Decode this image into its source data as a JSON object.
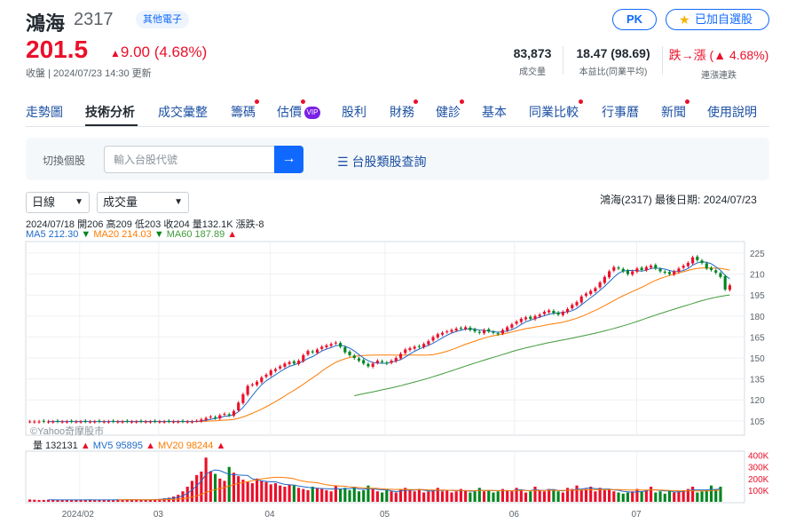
{
  "stock": {
    "name": "鴻海",
    "code": "2317",
    "category": "其他電子",
    "price": "201.5",
    "change": "9.00 (4.68%)",
    "updated": "收盤 | 2024/07/23 14:30 更新"
  },
  "actions": {
    "pk": "PK",
    "watchlist": "已加自選股"
  },
  "stats": [
    {
      "value": "83,873",
      "label": "成交量"
    },
    {
      "value": "18.47 (98.69)",
      "label": "本益比(同業平均)"
    },
    {
      "value": "跌→漲 (▲ 4.68%)",
      "label": "連漲連跌"
    }
  ],
  "tabs": [
    {
      "label": "走勢圖",
      "dot": false
    },
    {
      "label": "技術分析",
      "dot": false
    },
    {
      "label": "成交彙整",
      "dot": false
    },
    {
      "label": "籌碼",
      "dot": true
    },
    {
      "label": "估價",
      "dot": true
    },
    {
      "label": "股利",
      "dot": false
    },
    {
      "label": "財務",
      "dot": true
    },
    {
      "label": "健診",
      "dot": true
    },
    {
      "label": "基本",
      "dot": false
    },
    {
      "label": "同業比較",
      "dot": true
    },
    {
      "label": "行事曆",
      "dot": false
    },
    {
      "label": "新聞",
      "dot": true
    },
    {
      "label": "使用說明",
      "dot": false
    }
  ],
  "vip_badge": "VIP",
  "switcher": {
    "label": "切換個股",
    "placeholder": "輸入台股代號",
    "category_link": "台股類股查詢"
  },
  "controls": {
    "period": "日線",
    "indicator": "成交量",
    "chart_meta": "鴻海(2317)  最後日期: 2024/07/23"
  },
  "legend": {
    "ohlc": "2024/07/18 開206 高209 低203 收204 量132.1K 漲跌-8",
    "ma5": "MA5 212.30",
    "ma20": "MA20 214.03",
    "ma60": "MA60 187.89",
    "vol": "量 132131",
    "mv5": "MV5 95895",
    "mv20": "MV20 98244"
  },
  "colors": {
    "up": "#eb0f29",
    "down": "#00851f",
    "ma5": "#1d6ac8",
    "ma20": "#ff7b00",
    "ma60": "#3f9a3a",
    "accent": "#0f69ff"
  },
  "watermark": "©Yahoo奇摩股市",
  "chart_data": {
    "type": "candlestick",
    "y_ticks": [
      105,
      120,
      135,
      150,
      165,
      180,
      195,
      210,
      225
    ],
    "ylim": [
      96,
      232
    ],
    "vol_ticks": [
      "400K",
      "300K",
      "200K",
      "100K"
    ],
    "x_labels": [
      "2024/02",
      "03",
      "04",
      "05",
      "06",
      "07"
    ],
    "closes": [
      104.5,
      104.5,
      104.5,
      104.5,
      104.5,
      104.5,
      104.5,
      104.5,
      104.5,
      104.5,
      104.5,
      104.5,
      104.5,
      104.5,
      104.5,
      104.5,
      104.5,
      104.5,
      104.5,
      104.5,
      104.5,
      104.5,
      104.5,
      104.5,
      104.5,
      104.5,
      104.5,
      104.5,
      104.5,
      104.5,
      104.5,
      104.5,
      104.5,
      104.5,
      104.5,
      104.5,
      105,
      106,
      107,
      108,
      107,
      109,
      110,
      109,
      112,
      118,
      124,
      130,
      131,
      133,
      136,
      138,
      141,
      142,
      144,
      146,
      147,
      146,
      148,
      152,
      155,
      154,
      156,
      158,
      159,
      160,
      161,
      158,
      154,
      152,
      150,
      148,
      146,
      144,
      146,
      148,
      147,
      146,
      148,
      150,
      153,
      156,
      157,
      158,
      158,
      160,
      162,
      165,
      167,
      168,
      169,
      170,
      171,
      171,
      172,
      170,
      169,
      168,
      170,
      169,
      168,
      167,
      170,
      172,
      174,
      176,
      178,
      179,
      178,
      180,
      181,
      183,
      184,
      182,
      181,
      183,
      185,
      188,
      190,
      194,
      196,
      198,
      200,
      204,
      208,
      212,
      215,
      214,
      212,
      210,
      212,
      214,
      213,
      215,
      216,
      214,
      212,
      211,
      210,
      212,
      214,
      216,
      218,
      222,
      220,
      218,
      214,
      213,
      211,
      208,
      199,
      202
    ],
    "volumes_k": [
      20,
      18,
      15,
      16,
      18,
      17,
      16,
      15,
      16,
      18,
      17,
      16,
      15,
      18,
      16,
      17,
      15,
      16,
      18,
      20,
      19,
      17,
      16,
      18,
      17,
      16,
      20,
      22,
      25,
      30,
      35,
      45,
      60,
      90,
      130,
      180,
      230,
      260,
      380,
      260,
      240,
      200,
      180,
      300,
      250,
      220,
      190,
      170,
      160,
      200,
      180,
      170,
      150,
      160,
      140,
      130,
      150,
      140,
      120,
      110,
      100,
      130,
      120,
      110,
      100,
      90,
      140,
      110,
      120,
      100,
      130,
      90,
      100,
      140,
      110,
      90,
      80,
      100,
      90,
      80,
      110,
      120,
      100,
      90,
      110,
      80,
      90,
      100,
      120,
      90,
      100,
      80,
      90,
      110,
      100,
      80,
      90,
      120,
      90,
      100,
      80,
      90,
      110,
      100,
      90,
      120,
      100,
      80,
      90,
      130,
      100,
      90,
      110,
      100,
      90,
      80,
      120,
      110,
      140,
      100,
      110,
      130,
      90,
      120,
      100,
      110,
      90,
      80,
      70,
      80,
      90,
      110,
      90,
      100,
      130,
      80,
      90,
      70,
      100,
      80,
      90,
      100,
      110,
      130,
      80,
      90,
      100,
      140,
      110,
      130
    ]
  }
}
